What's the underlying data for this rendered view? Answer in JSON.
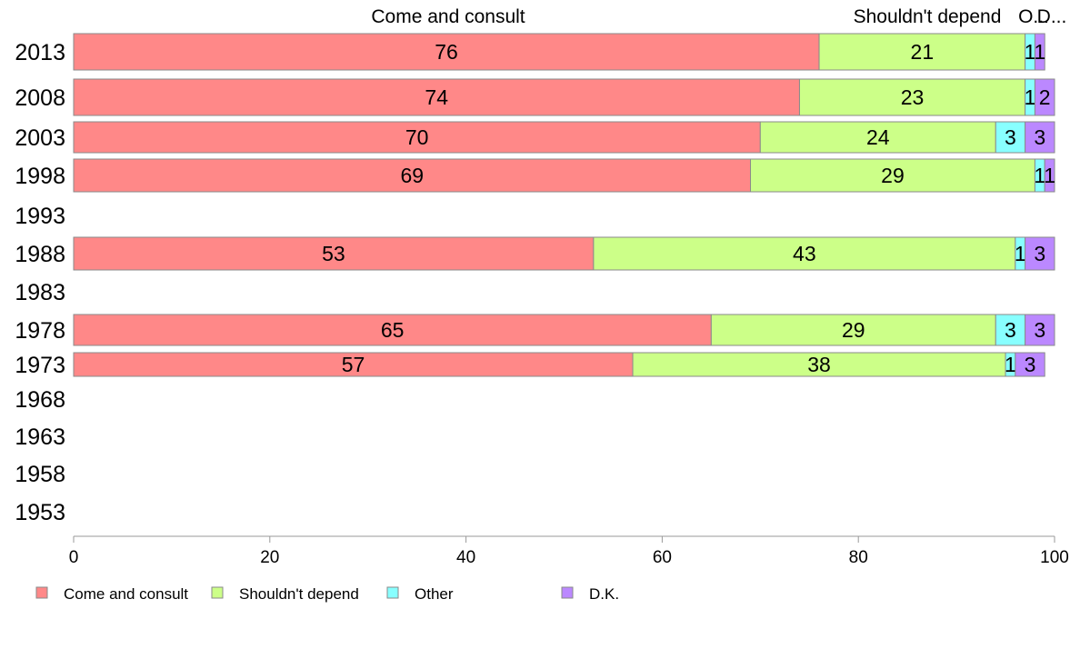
{
  "chart_data": {
    "type": "bar",
    "orientation": "horizontal",
    "stacked": true,
    "categories": [
      "2013",
      "2008",
      "2003",
      "1998",
      "1993",
      "1988",
      "1983",
      "1978",
      "1973",
      "1968",
      "1963",
      "1958",
      "1953"
    ],
    "series": [
      {
        "name": "Come and consult",
        "color": "#ff8888",
        "values": [
          76,
          74,
          70,
          69,
          null,
          53,
          null,
          65,
          57,
          null,
          null,
          null,
          null
        ]
      },
      {
        "name": "Shouldn't depend",
        "color": "#ccff88",
        "values": [
          21,
          23,
          24,
          29,
          null,
          43,
          null,
          29,
          38,
          null,
          null,
          null,
          null
        ]
      },
      {
        "name": "Other",
        "color": "#88ffff",
        "values": [
          1,
          1,
          3,
          1,
          null,
          1,
          null,
          3,
          1,
          null,
          null,
          null,
          null
        ]
      },
      {
        "name": "D.K.",
        "color": "#bb88ff",
        "values": [
          1,
          2,
          3,
          1,
          null,
          3,
          null,
          3,
          3,
          null,
          null,
          null,
          null
        ]
      }
    ],
    "column_headers": [
      "Come and consult",
      "Shouldn't depend",
      "O...",
      "D..."
    ],
    "xlim": [
      0,
      100
    ],
    "xticks": [
      "0",
      "20",
      "40",
      "60",
      "80",
      "100"
    ],
    "legend_position": "bottom-left",
    "grid": false
  }
}
